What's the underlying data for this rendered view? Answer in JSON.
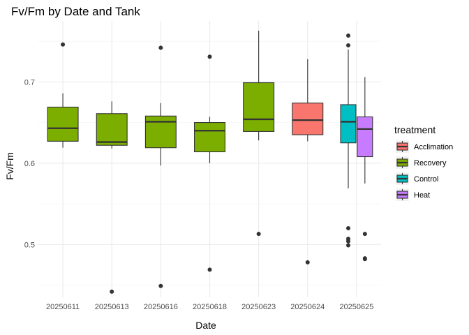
{
  "chart_data": {
    "type": "boxplot",
    "title": "Fv/Fm by Date and Tank",
    "xlabel": "Date",
    "ylabel": "Fv/Fm",
    "ylim": [
      0.435,
      0.775
    ],
    "yticks": [
      0.5,
      0.6,
      0.7
    ],
    "grid": true,
    "legend": {
      "title": "treatment",
      "position": "right",
      "entries": [
        {
          "label": "Acclimation",
          "color": "#F8766D"
        },
        {
          "label": "Recovery",
          "color": "#7CAE00"
        },
        {
          "label": "Control",
          "color": "#00BFC4"
        },
        {
          "label": "Heat",
          "color": "#C77CFF"
        }
      ]
    },
    "categories": [
      "20250611",
      "20250613",
      "20250616",
      "20250618",
      "20250623",
      "20250624",
      "20250625"
    ],
    "boxes": [
      {
        "category": "20250611",
        "treatment": "Recovery",
        "min": 0.619,
        "q1": 0.627,
        "median": 0.643,
        "q3": 0.669,
        "max": 0.686,
        "outliers": [
          0.746
        ]
      },
      {
        "category": "20250613",
        "treatment": "Recovery",
        "min": 0.618,
        "q1": 0.622,
        "median": 0.626,
        "q3": 0.661,
        "max": 0.676,
        "outliers": [
          0.442
        ]
      },
      {
        "category": "20250616",
        "treatment": "Recovery",
        "min": 0.597,
        "q1": 0.619,
        "median": 0.651,
        "q3": 0.658,
        "max": 0.674,
        "outliers": [
          0.742,
          0.449
        ]
      },
      {
        "category": "20250618",
        "treatment": "Recovery",
        "min": 0.6,
        "q1": 0.614,
        "median": 0.64,
        "q3": 0.65,
        "max": 0.657,
        "outliers": [
          0.731,
          0.469
        ]
      },
      {
        "category": "20250623",
        "treatment": "Recovery",
        "min": 0.628,
        "q1": 0.639,
        "median": 0.654,
        "q3": 0.699,
        "max": 0.763,
        "outliers": [
          0.513
        ]
      },
      {
        "category": "20250624",
        "treatment": "Acclimation",
        "min": 0.627,
        "q1": 0.635,
        "median": 0.653,
        "q3": 0.674,
        "max": 0.728,
        "outliers": [
          0.478
        ]
      },
      {
        "category": "20250625",
        "treatment": "Control",
        "min": 0.569,
        "q1": 0.625,
        "median": 0.651,
        "q3": 0.672,
        "max": 0.74,
        "outliers": [
          0.757,
          0.745,
          0.52,
          0.507,
          0.504,
          0.499
        ]
      },
      {
        "category": "20250625",
        "treatment": "Heat",
        "min": 0.575,
        "q1": 0.608,
        "median": 0.642,
        "q3": 0.657,
        "max": 0.706,
        "outliers": [
          0.513,
          0.483,
          0.482
        ]
      }
    ]
  }
}
